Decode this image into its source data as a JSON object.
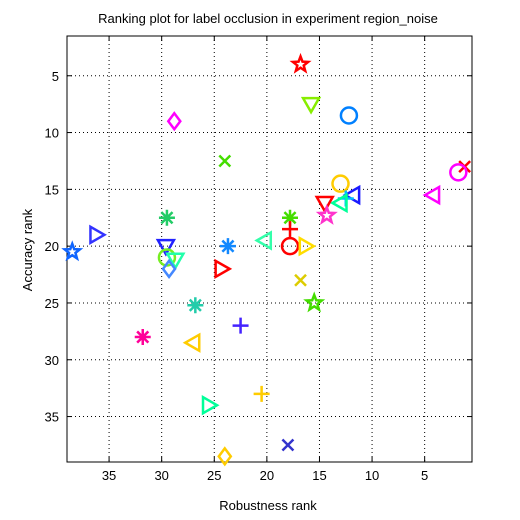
{
  "chart_data": {
    "type": "scatter",
    "title": "Ranking plot for label occlusion in experiment region_noise",
    "xlabel": "Robustness rank",
    "ylabel": "Accuracy rank",
    "xlim": [
      39,
      0.5
    ],
    "ylim": [
      39,
      1.5
    ],
    "x_reversed": true,
    "y_reversed": true,
    "x_ticks": [
      35,
      30,
      25,
      20,
      15,
      10,
      5
    ],
    "y_ticks": [
      5,
      10,
      15,
      20,
      25,
      30,
      35
    ],
    "grid": true,
    "points": [
      {
        "x": 16.8,
        "y": 4,
        "marker": "star",
        "color": "#ff0000"
      },
      {
        "x": 15.8,
        "y": 7.5,
        "marker": "triangle-down",
        "color": "#88ee00"
      },
      {
        "x": 12.2,
        "y": 8.5,
        "marker": "circle",
        "color": "#0080ff"
      },
      {
        "x": 28.8,
        "y": 9,
        "marker": "diamond",
        "color": "#ff00ff"
      },
      {
        "x": 24,
        "y": 12.5,
        "marker": "x",
        "color": "#44dd00"
      },
      {
        "x": 1.2,
        "y": 13,
        "marker": "x",
        "color": "#ff0000"
      },
      {
        "x": 1.8,
        "y": 13.5,
        "marker": "circle",
        "color": "#ff00ff"
      },
      {
        "x": 13,
        "y": 14.5,
        "marker": "circle",
        "color": "#ffcc00"
      },
      {
        "x": 11.8,
        "y": 15.5,
        "marker": "triangle-left",
        "color": "#1a1aff"
      },
      {
        "x": 12.5,
        "y": 15.8,
        "marker": "plus",
        "color": "#00c0ff"
      },
      {
        "x": 4.2,
        "y": 15.5,
        "marker": "triangle-left",
        "color": "#ff00ff"
      },
      {
        "x": 13,
        "y": 16.2,
        "marker": "triangle-left",
        "color": "#00ff99"
      },
      {
        "x": 14.5,
        "y": 16.2,
        "marker": "triangle-down",
        "color": "#ff0000"
      },
      {
        "x": 14.3,
        "y": 17.3,
        "marker": "star",
        "color": "#ff33cc"
      },
      {
        "x": 29.5,
        "y": 17.5,
        "marker": "asterisk",
        "color": "#22cc66"
      },
      {
        "x": 17.8,
        "y": 17.5,
        "marker": "asterisk",
        "color": "#44dd00"
      },
      {
        "x": 17.8,
        "y": 18.5,
        "marker": "plus",
        "color": "#ff0000"
      },
      {
        "x": 36.2,
        "y": 19,
        "marker": "triangle-right",
        "color": "#3333ff"
      },
      {
        "x": 20.2,
        "y": 19.5,
        "marker": "triangle-left",
        "color": "#33ffaa"
      },
      {
        "x": 23.7,
        "y": 20,
        "marker": "asterisk",
        "color": "#1188ff"
      },
      {
        "x": 17.8,
        "y": 20,
        "marker": "circle",
        "color": "#ff0000"
      },
      {
        "x": 16.3,
        "y": 20,
        "marker": "triangle-right",
        "color": "#ffdd00"
      },
      {
        "x": 29.6,
        "y": 20,
        "marker": "triangle-down",
        "color": "#2222ff"
      },
      {
        "x": 38.5,
        "y": 20.5,
        "marker": "star",
        "color": "#1166ff"
      },
      {
        "x": 29.5,
        "y": 21,
        "marker": "circle",
        "color": "#77ee22"
      },
      {
        "x": 28.7,
        "y": 21.2,
        "marker": "triangle-down",
        "color": "#22ffaa"
      },
      {
        "x": 29.3,
        "y": 22,
        "marker": "diamond",
        "color": "#4488ff"
      },
      {
        "x": 24.3,
        "y": 22,
        "marker": "triangle-right",
        "color": "#ff0000"
      },
      {
        "x": 16.8,
        "y": 23,
        "marker": "x",
        "color": "#ddcc00"
      },
      {
        "x": 26.8,
        "y": 25.2,
        "marker": "asterisk",
        "color": "#22ccaa"
      },
      {
        "x": 15.5,
        "y": 25,
        "marker": "star",
        "color": "#44dd00"
      },
      {
        "x": 22.5,
        "y": 27,
        "marker": "plus",
        "color": "#4422ff"
      },
      {
        "x": 31.8,
        "y": 28,
        "marker": "asterisk",
        "color": "#ff0099"
      },
      {
        "x": 27,
        "y": 28.5,
        "marker": "triangle-left",
        "color": "#ffcc00"
      },
      {
        "x": 20.5,
        "y": 33,
        "marker": "plus",
        "color": "#ffcc00"
      },
      {
        "x": 25.5,
        "y": 34,
        "marker": "triangle-right",
        "color": "#00ff99"
      },
      {
        "x": 18,
        "y": 37.5,
        "marker": "x",
        "color": "#3333cc"
      },
      {
        "x": 24,
        "y": 38.5,
        "marker": "diamond",
        "color": "#ffcc00"
      }
    ]
  }
}
